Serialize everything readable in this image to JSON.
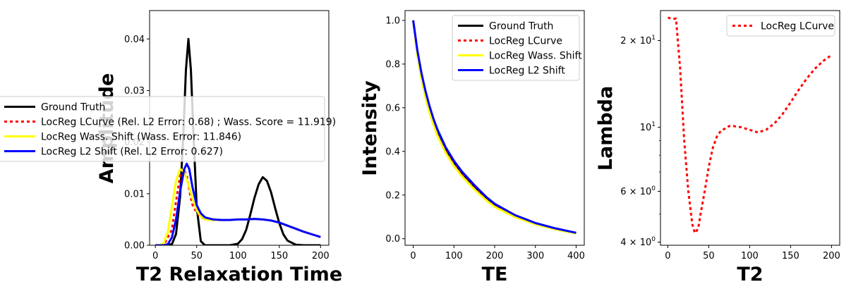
{
  "chart_data": [
    {
      "type": "line",
      "xlabel": "T2 Relaxation Time",
      "ylabel": "Amplitude",
      "xlim": [
        -7,
        210
      ],
      "ylim": [
        0,
        0.0455
      ],
      "xticks": [
        0,
        50,
        100,
        150,
        200
      ],
      "yticks": [
        0.0,
        0.01,
        0.02,
        0.03,
        0.04
      ],
      "ytick_labels": [
        "0.00",
        "0.01",
        "0.02",
        "0.03",
        "0.04"
      ],
      "legend_placement": "left",
      "series": [
        {
          "name": "Ground Truth",
          "color": "#000000",
          "style": "solid",
          "x": [
            0,
            10,
            20,
            25,
            30,
            34,
            37,
            40,
            43,
            46,
            50,
            55,
            60,
            70,
            80,
            90,
            100,
            105,
            110,
            115,
            120,
            125,
            130,
            135,
            140,
            145,
            150,
            155,
            160,
            170,
            180,
            190,
            200
          ],
          "y": [
            0,
            0,
            0.0002,
            0.0022,
            0.0095,
            0.022,
            0.034,
            0.04,
            0.034,
            0.022,
            0.0075,
            0.0008,
            0,
            0,
            0,
            0,
            0.0003,
            0.0012,
            0.003,
            0.006,
            0.0092,
            0.0118,
            0.0132,
            0.0125,
            0.0103,
            0.0072,
            0.0043,
            0.0021,
            0.0009,
            0.0001,
            0,
            0,
            0
          ]
        },
        {
          "name": "LocReg LCurve (Rel. L2 Error: 0.68) ; Wass. Score = 11.919)",
          "color": "#ff0000",
          "style": "dotted",
          "x": [
            0,
            10,
            20,
            25,
            30,
            34,
            38,
            42,
            45,
            50,
            55,
            60,
            70,
            80,
            90,
            100,
            110,
            120,
            130,
            140,
            150,
            160,
            170,
            180,
            190,
            200
          ],
          "y": [
            0,
            0,
            0.003,
            0.0085,
            0.0135,
            0.0148,
            0.0135,
            0.0098,
            0.0078,
            0.0063,
            0.0055,
            0.005,
            0.0049,
            0.0049,
            0.0049,
            0.005,
            0.005,
            0.0051,
            0.005,
            0.0048,
            0.0044,
            0.0038,
            0.0032,
            0.0026,
            0.0021,
            0.0016
          ]
        },
        {
          "name": "LocReg Wass. Shift (Wass. Error: 11.846)",
          "color": "#ffff00",
          "style": "solid",
          "x": [
            0,
            5,
            10,
            15,
            20,
            25,
            30,
            35,
            40,
            45,
            50,
            55,
            60,
            70,
            80,
            90,
            100,
            110,
            120,
            130,
            140,
            150,
            160,
            170,
            180,
            190,
            200
          ],
          "y": [
            0,
            0,
            0.0004,
            0.0025,
            0.0075,
            0.0125,
            0.0148,
            0.0142,
            0.0118,
            0.009,
            0.0068,
            0.0056,
            0.005,
            0.0049,
            0.0049,
            0.0049,
            0.005,
            0.005,
            0.0051,
            0.005,
            0.0048,
            0.0044,
            0.0038,
            0.0032,
            0.0026,
            0.0021,
            0.0016
          ]
        },
        {
          "name": "LocReg L2 Shift (Rel. L2 Error: 0.627)",
          "color": "#0000ff",
          "style": "solid",
          "x": [
            0,
            10,
            15,
            20,
            25,
            30,
            35,
            38,
            41,
            45,
            50,
            55,
            60,
            70,
            80,
            90,
            100,
            110,
            120,
            130,
            140,
            150,
            160,
            170,
            180,
            190,
            200
          ],
          "y": [
            0,
            0,
            0.0002,
            0.0015,
            0.005,
            0.0105,
            0.0148,
            0.0158,
            0.0148,
            0.0112,
            0.0078,
            0.0062,
            0.0054,
            0.005,
            0.0049,
            0.0049,
            0.005,
            0.005,
            0.0051,
            0.005,
            0.0048,
            0.0044,
            0.0038,
            0.0032,
            0.0026,
            0.0021,
            0.0016
          ]
        }
      ]
    },
    {
      "type": "line",
      "xlabel": "TE",
      "ylabel": "Intensity",
      "xlim": [
        -20,
        420
      ],
      "ylim": [
        -0.03,
        1.045
      ],
      "xticks": [
        0,
        100,
        200,
        300,
        400
      ],
      "yticks": [
        0.0,
        0.2,
        0.4,
        0.6,
        0.8,
        1.0
      ],
      "ytick_labels": [
        "0.0",
        "0.2",
        "0.4",
        "0.6",
        "0.8",
        "1.0"
      ],
      "legend_placement": "upper right",
      "series": [
        {
          "name": "Ground Truth",
          "color": "#000000",
          "style": "solid",
          "x": [
            0,
            10,
            20,
            30,
            40,
            50,
            60,
            80,
            100,
            120,
            150,
            180,
            200,
            250,
            300,
            350,
            400
          ],
          "y": [
            1.0,
            0.86,
            0.755,
            0.67,
            0.6,
            0.54,
            0.49,
            0.41,
            0.35,
            0.3,
            0.24,
            0.185,
            0.155,
            0.105,
            0.07,
            0.045,
            0.025
          ]
        },
        {
          "name": "LocReg LCurve",
          "color": "#ff0000",
          "style": "dotted",
          "x": [
            0,
            10,
            20,
            30,
            40,
            50,
            60,
            80,
            100,
            120,
            150,
            180,
            200,
            250,
            300,
            350,
            400
          ],
          "y": [
            1.0,
            0.862,
            0.757,
            0.672,
            0.602,
            0.542,
            0.492,
            0.412,
            0.352,
            0.302,
            0.242,
            0.187,
            0.157,
            0.106,
            0.071,
            0.046,
            0.026
          ]
        },
        {
          "name": "LocReg Wass. Shift",
          "color": "#ffff00",
          "style": "solid",
          "x": [
            0,
            10,
            20,
            30,
            40,
            50,
            60,
            80,
            100,
            120,
            150,
            180,
            200,
            250,
            300,
            350,
            400
          ],
          "y": [
            1.0,
            0.845,
            0.735,
            0.648,
            0.578,
            0.52,
            0.47,
            0.392,
            0.333,
            0.285,
            0.226,
            0.175,
            0.146,
            0.099,
            0.066,
            0.042,
            0.024
          ]
        },
        {
          "name": "LocReg L2 Shift",
          "color": "#0000ff",
          "style": "solid",
          "x": [
            0,
            10,
            20,
            30,
            40,
            50,
            60,
            80,
            100,
            120,
            150,
            180,
            200,
            250,
            300,
            350,
            400
          ],
          "y": [
            1.0,
            0.865,
            0.762,
            0.678,
            0.608,
            0.548,
            0.498,
            0.418,
            0.357,
            0.307,
            0.246,
            0.19,
            0.16,
            0.108,
            0.072,
            0.047,
            0.027
          ]
        }
      ]
    },
    {
      "type": "line",
      "xlabel": "T2",
      "ylabel": "Lambda",
      "xlim": [
        -9,
        210
      ],
      "ylim": [
        3.9,
        25.4
      ],
      "yscale": "log",
      "xticks": [
        0,
        50,
        100,
        150,
        200
      ],
      "major_yticks": [
        4,
        6,
        10,
        20
      ],
      "major_ytick_labels": [
        {
          "base": "4 × 10",
          "exp": "0"
        },
        {
          "base": "6 × 10",
          "exp": "0"
        },
        {
          "base": "10",
          "exp": "1"
        },
        {
          "base": "2 × 10",
          "exp": "1"
        }
      ],
      "minor_yticks": [
        3,
        5,
        7,
        8,
        9
      ],
      "legend_placement": "upper right",
      "series": [
        {
          "name": "LocReg LCurve",
          "color": "#ff0000",
          "style": "dotted",
          "x": [
            0,
            5,
            10,
            15,
            20,
            25,
            30,
            33,
            37,
            40,
            45,
            50,
            55,
            60,
            65,
            70,
            75,
            80,
            90,
            100,
            110,
            120,
            130,
            140,
            150,
            160,
            170,
            180,
            190,
            200
          ],
          "y": [
            24,
            23.8,
            23.8,
            16,
            9,
            6,
            4.6,
            4.3,
            4.45,
            5,
            6,
            7.3,
            8.5,
            9.3,
            9.75,
            9.9,
            10.1,
            10.1,
            10.0,
            9.8,
            9.6,
            9.8,
            10.3,
            11.1,
            12.2,
            13.5,
            14.8,
            16.0,
            17.0,
            17.8
          ]
        }
      ]
    }
  ]
}
